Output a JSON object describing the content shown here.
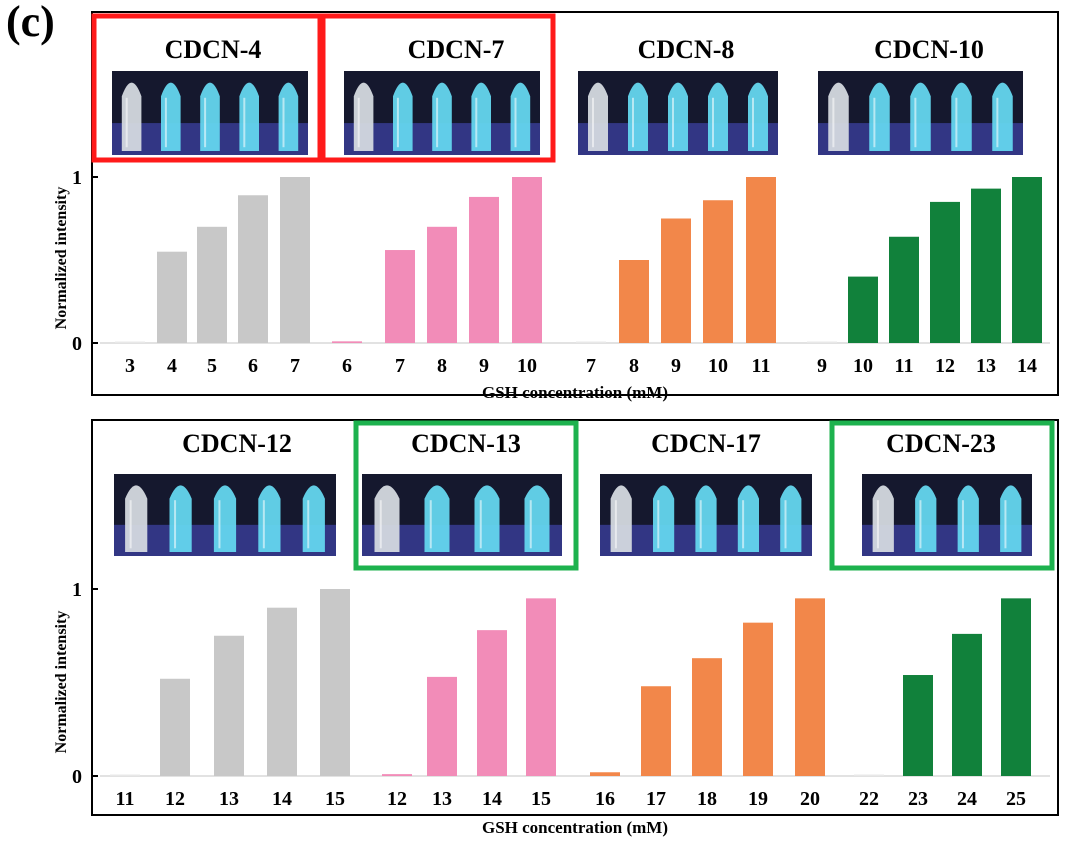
{
  "panel_label": "(c)",
  "colors": {
    "gray": "#c8c8c8",
    "pink": "#f28cb8",
    "orange": "#f2874a",
    "green": "#11813b",
    "highlight_red": "#ff1a1a",
    "highlight_green": "#1db24e"
  },
  "chart_data": [
    {
      "type": "bar",
      "ylabel": "Normalized intensity",
      "xlabel": "GSH concentration (mM)",
      "ylim": [
        0,
        1
      ],
      "yticks": [
        "0",
        "1"
      ],
      "groups": [
        {
          "name": "CDCN-4",
          "highlight": "red",
          "color": "gray",
          "categories": [
            "3",
            "4",
            "5",
            "6",
            "7"
          ],
          "values": [
            0,
            0.55,
            0.7,
            0.89,
            1.0
          ]
        },
        {
          "name": "CDCN-7",
          "highlight": "red",
          "color": "pink",
          "categories": [
            "6",
            "7",
            "8",
            "9",
            "10"
          ],
          "values": [
            0.01,
            0.56,
            0.7,
            0.88,
            1.0
          ]
        },
        {
          "name": "CDCN-8",
          "highlight": "none",
          "color": "orange",
          "categories": [
            "7",
            "8",
            "9",
            "10",
            "11"
          ],
          "values": [
            0,
            0.5,
            0.75,
            0.86,
            1.0
          ]
        },
        {
          "name": "CDCN-10",
          "highlight": "none",
          "color": "green",
          "categories": [
            "9",
            "10",
            "11",
            "12",
            "13",
            "14"
          ],
          "values": [
            0,
            0.4,
            0.64,
            0.85,
            0.93,
            1.0
          ]
        }
      ]
    },
    {
      "type": "bar",
      "ylabel": "Normalized intensity",
      "xlabel": "GSH concentration (mM)",
      "ylim": [
        0,
        1
      ],
      "yticks": [
        "0",
        "1"
      ],
      "groups": [
        {
          "name": "CDCN-12",
          "highlight": "none",
          "color": "gray",
          "categories": [
            "11",
            "12",
            "13",
            "14",
            "15"
          ],
          "values": [
            0,
            0.52,
            0.75,
            0.9,
            1.0
          ]
        },
        {
          "name": "CDCN-13",
          "highlight": "green",
          "color": "pink",
          "categories": [
            "12",
            "13",
            "14",
            "15"
          ],
          "values": [
            0.01,
            0.53,
            0.78,
            0.95
          ]
        },
        {
          "name": "CDCN-17",
          "highlight": "none",
          "color": "orange",
          "categories": [
            "16",
            "17",
            "18",
            "19",
            "20"
          ],
          "values": [
            0.02,
            0.48,
            0.63,
            0.82,
            0.95
          ]
        },
        {
          "name": "CDCN-23",
          "highlight": "green",
          "color": "green",
          "categories": [
            "22",
            "23",
            "24",
            "25"
          ],
          "values": [
            0,
            0.54,
            0.76,
            0.95
          ]
        }
      ]
    }
  ]
}
